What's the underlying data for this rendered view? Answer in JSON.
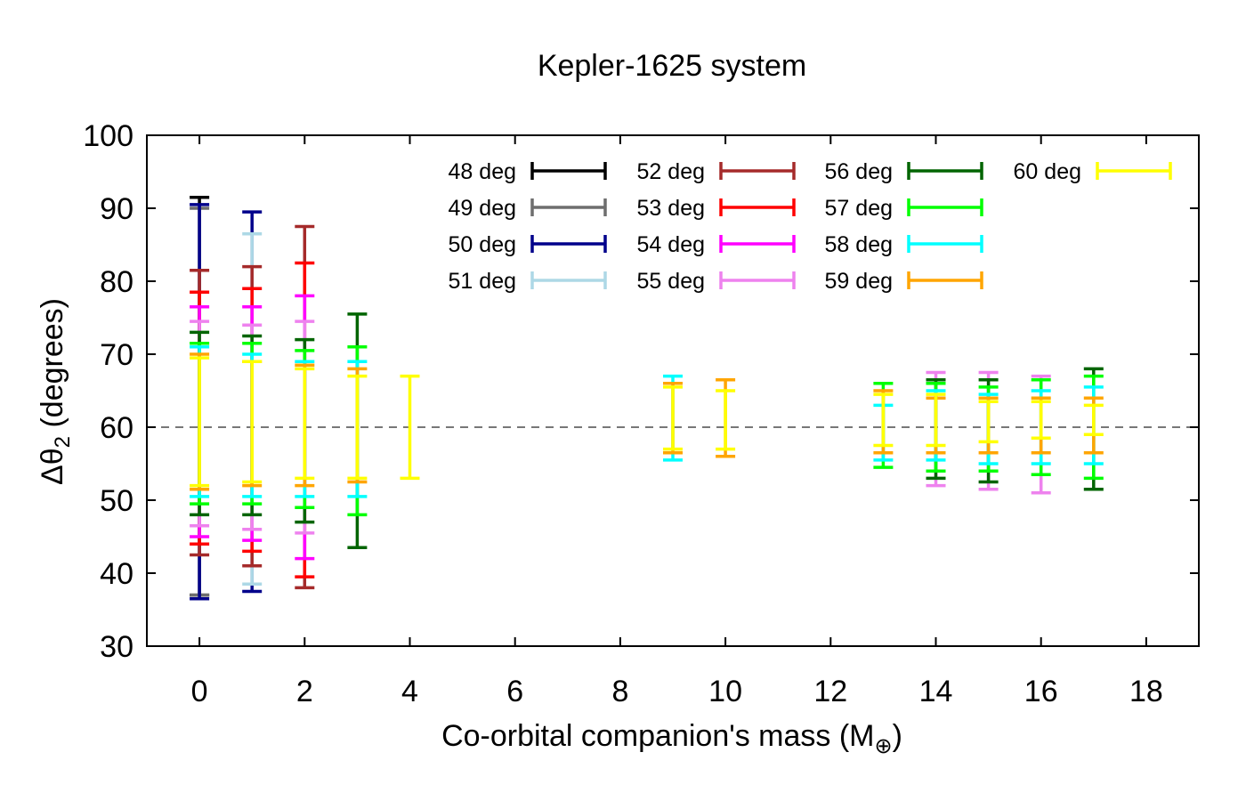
{
  "chart_data": {
    "type": "errorbar",
    "title": "Kepler-1625 system",
    "xlabel_main": "Co-orbital companion's mass (M",
    "xlabel_sub": "⊕",
    "xlabel_end": ")",
    "ylabel_main": "Δθ",
    "ylabel_sub": "2",
    "ylabel_end": " (degrees)",
    "xlim": [
      -1,
      19
    ],
    "ylim": [
      30,
      100
    ],
    "xticks": [
      0,
      2,
      4,
      6,
      8,
      10,
      12,
      14,
      16,
      18
    ],
    "yticks": [
      30,
      40,
      50,
      60,
      70,
      80,
      90,
      100
    ],
    "reference_line": {
      "y": 60,
      "style": "dashed",
      "color": "#777777"
    },
    "legend": {
      "placement": "top-right",
      "columns": 4
    },
    "series": [
      {
        "name": "48 deg",
        "color": "#000000",
        "points": [
          {
            "x": 0,
            "low": 37,
            "high": 91.5
          }
        ]
      },
      {
        "name": "49 deg",
        "color": "#6e6e6e",
        "points": [
          {
            "x": 0,
            "low": 37,
            "high": 90
          }
        ]
      },
      {
        "name": "50 deg",
        "color": "#00008b",
        "points": [
          {
            "x": 0,
            "low": 36.5,
            "high": 90.5
          },
          {
            "x": 1,
            "low": 37.5,
            "high": 89.5
          }
        ]
      },
      {
        "name": "51 deg",
        "color": "#add8e6",
        "points": [
          {
            "x": 1,
            "low": 38.5,
            "high": 86.5
          }
        ]
      },
      {
        "name": "52 deg",
        "color": "#a52a2a",
        "points": [
          {
            "x": 0,
            "low": 42.5,
            "high": 81.5
          },
          {
            "x": 1,
            "low": 41,
            "high": 82
          },
          {
            "x": 2,
            "low": 38,
            "high": 87.5
          }
        ]
      },
      {
        "name": "53 deg",
        "color": "#ff0000",
        "points": [
          {
            "x": 0,
            "low": 44,
            "high": 78.5
          },
          {
            "x": 1,
            "low": 43,
            "high": 79
          },
          {
            "x": 2,
            "low": 39.5,
            "high": 82.5
          }
        ]
      },
      {
        "name": "54 deg",
        "color": "#ff00ff",
        "points": [
          {
            "x": 0,
            "low": 45,
            "high": 76.5
          },
          {
            "x": 1,
            "low": 44.5,
            "high": 76.5
          },
          {
            "x": 2,
            "low": 42,
            "high": 78
          }
        ]
      },
      {
        "name": "55 deg",
        "color": "#ee82ee",
        "points": [
          {
            "x": 0,
            "low": 46.5,
            "high": 74.5
          },
          {
            "x": 1,
            "low": 46,
            "high": 74
          },
          {
            "x": 2,
            "low": 45.5,
            "high": 74.5
          },
          {
            "x": 14,
            "low": 52,
            "high": 67.5
          },
          {
            "x": 15,
            "low": 51.5,
            "high": 67.5
          },
          {
            "x": 16,
            "low": 51,
            "high": 67
          }
        ]
      },
      {
        "name": "56 deg",
        "color": "#006400",
        "points": [
          {
            "x": 0,
            "low": 48,
            "high": 73
          },
          {
            "x": 1,
            "low": 48,
            "high": 72.5
          },
          {
            "x": 2,
            "low": 47,
            "high": 72
          },
          {
            "x": 3,
            "low": 43.5,
            "high": 75.5
          },
          {
            "x": 14,
            "low": 53,
            "high": 66.5
          },
          {
            "x": 15,
            "low": 52.5,
            "high": 66.5
          },
          {
            "x": 17,
            "low": 51.5,
            "high": 68
          }
        ]
      },
      {
        "name": "57 deg",
        "color": "#00ff00",
        "points": [
          {
            "x": 0,
            "low": 49.5,
            "high": 71.5
          },
          {
            "x": 1,
            "low": 49.5,
            "high": 71.5
          },
          {
            "x": 2,
            "low": 49,
            "high": 70.5
          },
          {
            "x": 3,
            "low": 48,
            "high": 71
          },
          {
            "x": 13,
            "low": 54.5,
            "high": 66
          },
          {
            "x": 14,
            "low": 54,
            "high": 66
          },
          {
            "x": 15,
            "low": 54,
            "high": 65.5
          },
          {
            "x": 16,
            "low": 53.5,
            "high": 66.5
          },
          {
            "x": 17,
            "low": 53,
            "high": 67
          }
        ]
      },
      {
        "name": "58 deg",
        "color": "#00ffff",
        "points": [
          {
            "x": 0,
            "low": 50.5,
            "high": 71
          },
          {
            "x": 1,
            "low": 50.5,
            "high": 70
          },
          {
            "x": 2,
            "low": 50.5,
            "high": 69
          },
          {
            "x": 3,
            "low": 50.5,
            "high": 69
          },
          {
            "x": 9,
            "low": 55.5,
            "high": 67
          },
          {
            "x": 13,
            "low": 55.5,
            "high": 63
          },
          {
            "x": 14,
            "low": 55.5,
            "high": 65
          },
          {
            "x": 15,
            "low": 55,
            "high": 64.5
          },
          {
            "x": 16,
            "low": 55,
            "high": 65
          },
          {
            "x": 17,
            "low": 55,
            "high": 65.5
          }
        ]
      },
      {
        "name": "59 deg",
        "color": "#ffa500",
        "points": [
          {
            "x": 0,
            "low": 51.5,
            "high": 70
          },
          {
            "x": 1,
            "low": 52,
            "high": 69
          },
          {
            "x": 2,
            "low": 52,
            "high": 68.5
          },
          {
            "x": 3,
            "low": 52.5,
            "high": 68
          },
          {
            "x": 9,
            "low": 56.5,
            "high": 66
          },
          {
            "x": 10,
            "low": 56,
            "high": 66.5
          },
          {
            "x": 13,
            "low": 56.5,
            "high": 65
          },
          {
            "x": 14,
            "low": 56.5,
            "high": 64
          },
          {
            "x": 15,
            "low": 56.5,
            "high": 64
          },
          {
            "x": 16,
            "low": 56.5,
            "high": 64
          },
          {
            "x": 17,
            "low": 56.5,
            "high": 64
          }
        ]
      },
      {
        "name": "60 deg",
        "color": "#ffff00",
        "points": [
          {
            "x": 0,
            "low": 52,
            "high": 69.5
          },
          {
            "x": 1,
            "low": 52.5,
            "high": 69
          },
          {
            "x": 2,
            "low": 53,
            "high": 68
          },
          {
            "x": 3,
            "low": 53,
            "high": 67
          },
          {
            "x": 4,
            "low": 53,
            "high": 67
          },
          {
            "x": 9,
            "low": 57,
            "high": 65.5
          },
          {
            "x": 10,
            "low": 57,
            "high": 65
          },
          {
            "x": 13,
            "low": 57.5,
            "high": 64.5
          },
          {
            "x": 14,
            "low": 57.5,
            "high": 64.5
          },
          {
            "x": 15,
            "low": 58,
            "high": 63.5
          },
          {
            "x": 16,
            "low": 58.5,
            "high": 63.5
          },
          {
            "x": 17,
            "low": 59,
            "high": 63
          }
        ]
      }
    ]
  }
}
